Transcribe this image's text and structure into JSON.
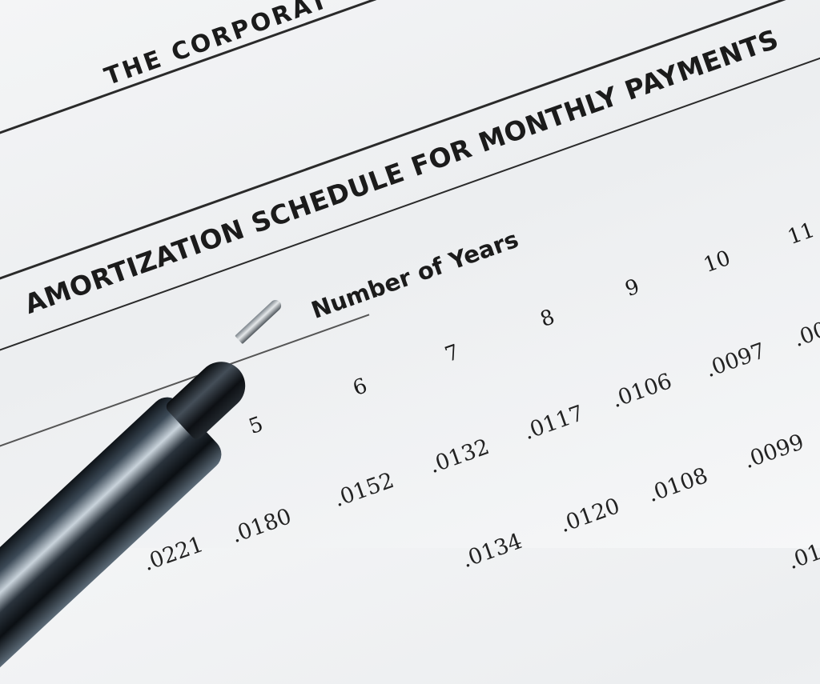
{
  "document": {
    "header_fragment": "THE CORPORAT",
    "title": "AMORTIZATION SCHEDULE FOR MONTHLY PAYMENTS",
    "column_group_label": "Number of Years",
    "years": [
      "5",
      "6",
      "7",
      "8",
      "9",
      "10",
      "11"
    ],
    "rows": [
      [
        ".0221",
        ".0180",
        ".0152",
        ".0132",
        ".0117",
        ".0106",
        ".0097",
        ".00"
      ],
      [
        ".0134",
        ".0120",
        ".0108",
        ".0099"
      ],
      [
        ".01"
      ]
    ]
  },
  "colors": {
    "paper": "#f1f2f4",
    "ink": "#1b1b1b",
    "pen_body": "#1c232b"
  }
}
